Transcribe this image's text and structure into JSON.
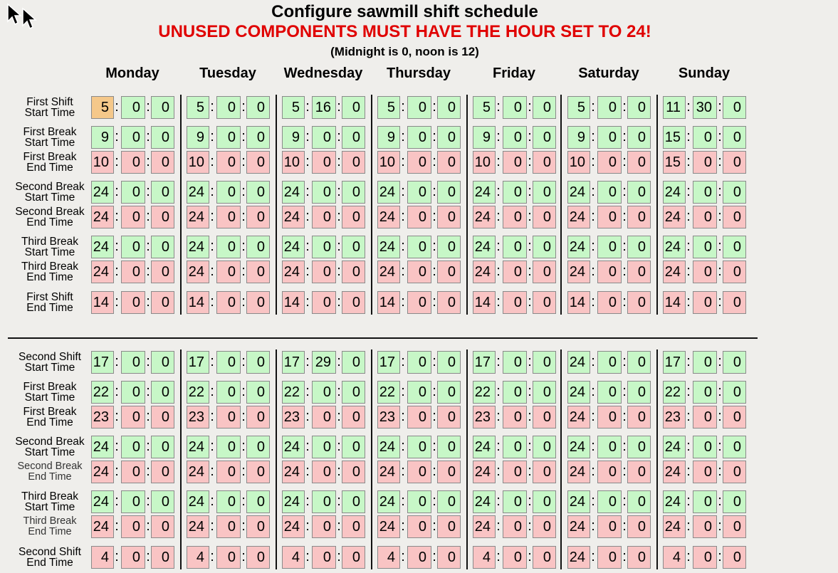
{
  "header": {
    "title": "Configure sawmill shift schedule",
    "warning": "UNUSED COMPONENTS MUST HAVE THE HOUR SET TO 24!",
    "note": "(Midnight is 0, noon is 12)"
  },
  "days": [
    "Monday",
    "Tuesday",
    "Wednesday",
    "Thursday",
    "Friday",
    "Saturday",
    "Sunday"
  ],
  "colors": {
    "start_field": "#c7f7c7",
    "end_field": "#f9c4c4",
    "focused_field": "#f5c88a",
    "warning_text": "#e00000"
  },
  "rows": [
    {
      "label": [
        "First Shift",
        "Start Time"
      ],
      "kind": "start",
      "values": [
        [
          5,
          0,
          0
        ],
        [
          5,
          0,
          0
        ],
        [
          5,
          16,
          0
        ],
        [
          5,
          0,
          0
        ],
        [
          5,
          0,
          0
        ],
        [
          5,
          0,
          0
        ],
        [
          11,
          30,
          0
        ]
      ]
    },
    {
      "label": [
        "First Break",
        "Start Time"
      ],
      "kind": "start",
      "values": [
        [
          9,
          0,
          0
        ],
        [
          9,
          0,
          0
        ],
        [
          9,
          0,
          0
        ],
        [
          9,
          0,
          0
        ],
        [
          9,
          0,
          0
        ],
        [
          9,
          0,
          0
        ],
        [
          15,
          0,
          0
        ]
      ]
    },
    {
      "label": [
        "First Break",
        "End Time"
      ],
      "kind": "end",
      "values": [
        [
          10,
          0,
          0
        ],
        [
          10,
          0,
          0
        ],
        [
          10,
          0,
          0
        ],
        [
          10,
          0,
          0
        ],
        [
          10,
          0,
          0
        ],
        [
          10,
          0,
          0
        ],
        [
          15,
          0,
          0
        ]
      ]
    },
    {
      "label": [
        "Second Break",
        "Start Time"
      ],
      "kind": "start",
      "values": [
        [
          24,
          0,
          0
        ],
        [
          24,
          0,
          0
        ],
        [
          24,
          0,
          0
        ],
        [
          24,
          0,
          0
        ],
        [
          24,
          0,
          0
        ],
        [
          24,
          0,
          0
        ],
        [
          24,
          0,
          0
        ]
      ]
    },
    {
      "label": [
        "Second Break",
        "End Time"
      ],
      "kind": "end",
      "values": [
        [
          24,
          0,
          0
        ],
        [
          24,
          0,
          0
        ],
        [
          24,
          0,
          0
        ],
        [
          24,
          0,
          0
        ],
        [
          24,
          0,
          0
        ],
        [
          24,
          0,
          0
        ],
        [
          24,
          0,
          0
        ]
      ]
    },
    {
      "label": [
        "Third Break",
        "Start Time"
      ],
      "kind": "start",
      "values": [
        [
          24,
          0,
          0
        ],
        [
          24,
          0,
          0
        ],
        [
          24,
          0,
          0
        ],
        [
          24,
          0,
          0
        ],
        [
          24,
          0,
          0
        ],
        [
          24,
          0,
          0
        ],
        [
          24,
          0,
          0
        ]
      ]
    },
    {
      "label": [
        "Third Break",
        "End Time"
      ],
      "kind": "end",
      "values": [
        [
          24,
          0,
          0
        ],
        [
          24,
          0,
          0
        ],
        [
          24,
          0,
          0
        ],
        [
          24,
          0,
          0
        ],
        [
          24,
          0,
          0
        ],
        [
          24,
          0,
          0
        ],
        [
          24,
          0,
          0
        ]
      ]
    },
    {
      "label": [
        "First Shift",
        "End Time"
      ],
      "kind": "end",
      "values": [
        [
          14,
          0,
          0
        ],
        [
          14,
          0,
          0
        ],
        [
          14,
          0,
          0
        ],
        [
          14,
          0,
          0
        ],
        [
          14,
          0,
          0
        ],
        [
          14,
          0,
          0
        ],
        [
          14,
          0,
          0
        ]
      ]
    },
    {
      "label": [
        "Second Shift",
        "Start Time"
      ],
      "kind": "start",
      "values": [
        [
          17,
          0,
          0
        ],
        [
          17,
          0,
          0
        ],
        [
          17,
          29,
          0
        ],
        [
          17,
          0,
          0
        ],
        [
          17,
          0,
          0
        ],
        [
          24,
          0,
          0
        ],
        [
          17,
          0,
          0
        ]
      ]
    },
    {
      "label": [
        "First Break",
        "Start Time"
      ],
      "kind": "start",
      "values": [
        [
          22,
          0,
          0
        ],
        [
          22,
          0,
          0
        ],
        [
          22,
          0,
          0
        ],
        [
          22,
          0,
          0
        ],
        [
          22,
          0,
          0
        ],
        [
          24,
          0,
          0
        ],
        [
          22,
          0,
          0
        ]
      ]
    },
    {
      "label": [
        "First Break",
        "End Time"
      ],
      "kind": "end",
      "values": [
        [
          23,
          0,
          0
        ],
        [
          23,
          0,
          0
        ],
        [
          23,
          0,
          0
        ],
        [
          23,
          0,
          0
        ],
        [
          23,
          0,
          0
        ],
        [
          24,
          0,
          0
        ],
        [
          23,
          0,
          0
        ]
      ]
    },
    {
      "label": [
        "Second Break",
        "Start Time"
      ],
      "kind": "start",
      "values": [
        [
          24,
          0,
          0
        ],
        [
          24,
          0,
          0
        ],
        [
          24,
          0,
          0
        ],
        [
          24,
          0,
          0
        ],
        [
          24,
          0,
          0
        ],
        [
          24,
          0,
          0
        ],
        [
          24,
          0,
          0
        ]
      ]
    },
    {
      "label": [
        "Second Break",
        "End Time"
      ],
      "kind": "end",
      "light": true,
      "values": [
        [
          24,
          0,
          0
        ],
        [
          24,
          0,
          0
        ],
        [
          24,
          0,
          0
        ],
        [
          24,
          0,
          0
        ],
        [
          24,
          0,
          0
        ],
        [
          24,
          0,
          0
        ],
        [
          24,
          0,
          0
        ]
      ]
    },
    {
      "label": [
        "Third Break",
        "Start Time"
      ],
      "kind": "start",
      "values": [
        [
          24,
          0,
          0
        ],
        [
          24,
          0,
          0
        ],
        [
          24,
          0,
          0
        ],
        [
          24,
          0,
          0
        ],
        [
          24,
          0,
          0
        ],
        [
          24,
          0,
          0
        ],
        [
          24,
          0,
          0
        ]
      ]
    },
    {
      "label": [
        "Third Break",
        "End Time"
      ],
      "kind": "end",
      "light": true,
      "values": [
        [
          24,
          0,
          0
        ],
        [
          24,
          0,
          0
        ],
        [
          24,
          0,
          0
        ],
        [
          24,
          0,
          0
        ],
        [
          24,
          0,
          0
        ],
        [
          24,
          0,
          0
        ],
        [
          24,
          0,
          0
        ]
      ]
    },
    {
      "label": [
        "Second Shift",
        "End Time"
      ],
      "kind": "end",
      "values": [
        [
          4,
          0,
          0
        ],
        [
          4,
          0,
          0
        ],
        [
          4,
          0,
          0
        ],
        [
          4,
          0,
          0
        ],
        [
          4,
          0,
          0
        ],
        [
          24,
          0,
          0
        ],
        [
          4,
          0,
          0
        ]
      ]
    }
  ],
  "focused": {
    "row": 0,
    "day": 0,
    "part": 0
  }
}
